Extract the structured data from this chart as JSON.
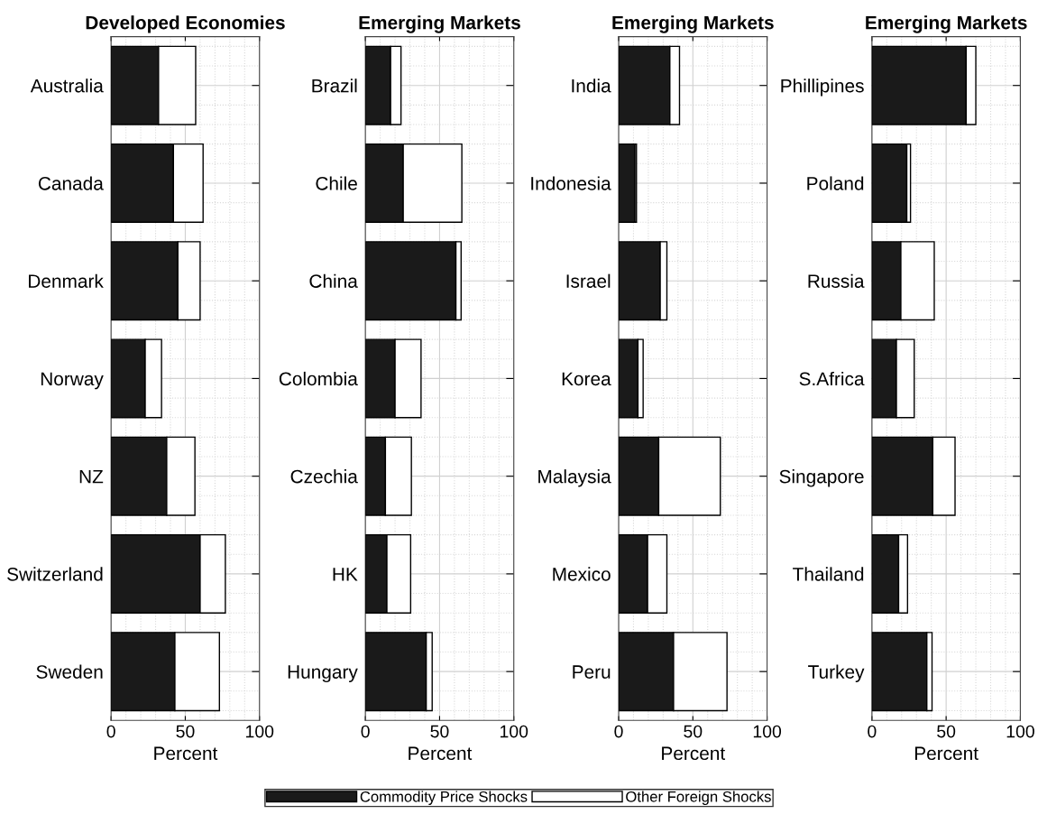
{
  "chart_data": [
    {
      "type": "bar",
      "orientation": "horizontal",
      "stacked": true,
      "title": "Developed Economies",
      "xlabel": "Percent",
      "categories": [
        "Australia",
        "Canada",
        "Denmark",
        "Norway",
        "NZ",
        "Switzerland",
        "Sweden"
      ],
      "xlim": [
        0,
        100
      ],
      "xticks": [
        0,
        50,
        100
      ],
      "grid": true,
      "legend": "bottom",
      "series": [
        {
          "name": "Commodity Price Shocks",
          "color": "#1a1a1a",
          "values": [
            32,
            42,
            45,
            23,
            37.5,
            60,
            43
          ]
        },
        {
          "name": "Other Foreign Shocks",
          "color": "#ffffff",
          "values": [
            25,
            20,
            15,
            11,
            19,
            17,
            30
          ]
        }
      ]
    },
    {
      "type": "bar",
      "orientation": "horizontal",
      "stacked": true,
      "title": "Emerging Markets",
      "xlabel": "Percent",
      "categories": [
        "Brazil",
        "Chile",
        "China",
        "Colombia",
        "Czechia",
        "HK",
        "Hungary"
      ],
      "xlim": [
        0,
        100
      ],
      "xticks": [
        0,
        50,
        100
      ],
      "grid": true,
      "series": [
        {
          "color": "#1a1a1a",
          "values": [
            17,
            25.5,
            61,
            20,
            13.5,
            14.5,
            41
          ]
        },
        {
          "color": "#ffffff",
          "values": [
            7,
            39.5,
            3.5,
            17.5,
            17.5,
            16,
            4
          ]
        }
      ]
    },
    {
      "type": "bar",
      "orientation": "horizontal",
      "stacked": true,
      "title": "Emerging Markets",
      "xlabel": "Percent",
      "categories": [
        "India",
        "Indonesia",
        "Israel",
        "Korea",
        "Malaysia",
        "Mexico",
        "Peru"
      ],
      "xlim": [
        0,
        100
      ],
      "xticks": [
        0,
        50,
        100
      ],
      "grid": true,
      "series": [
        {
          "color": "#1a1a1a",
          "values": [
            34.5,
            11,
            28,
            13,
            27,
            19.5,
            37
          ]
        },
        {
          "color": "#ffffff",
          "values": [
            6.5,
            1,
            4.5,
            3.5,
            41.5,
            13,
            36
          ]
        }
      ]
    },
    {
      "type": "bar",
      "orientation": "horizontal",
      "stacked": true,
      "title": "Emerging Markets",
      "xlabel": "Percent",
      "categories": [
        "Phillipines",
        "Poland",
        "Russia",
        "S.Africa",
        "Singapore",
        "Thailand",
        "Turkey"
      ],
      "xlim": [
        0,
        100
      ],
      "xticks": [
        0,
        50,
        100
      ],
      "grid": true,
      "series": [
        {
          "color": "#1a1a1a",
          "values": [
            63.5,
            23.5,
            19.5,
            16.5,
            41,
            18,
            37
          ]
        },
        {
          "color": "#ffffff",
          "values": [
            6.5,
            2.5,
            22.5,
            12,
            15,
            6,
            3.5
          ]
        }
      ]
    }
  ]
}
